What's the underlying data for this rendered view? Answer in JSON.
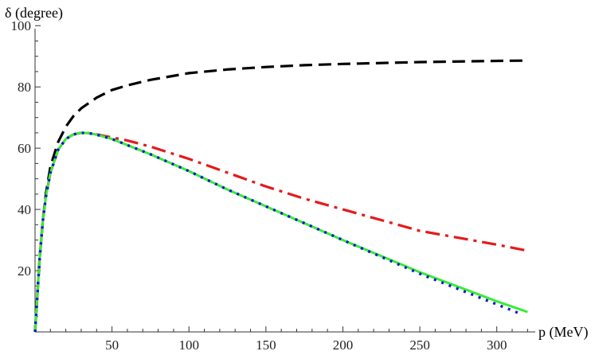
{
  "chart_data": {
    "type": "line",
    "title": "",
    "xlabel": "p (MeV)",
    "ylabel": "δ (degree)",
    "xlim": [
      0,
      325
    ],
    "ylim": [
      0,
      105
    ],
    "xticks": [
      50,
      100,
      150,
      200,
      250,
      300
    ],
    "yticks": [
      20,
      40,
      60,
      80,
      100
    ],
    "grid": false,
    "series": [
      {
        "color": "#000000",
        "dash": "dashed",
        "x": [
          0,
          1,
          2,
          3,
          5,
          7,
          10,
          15,
          20,
          25,
          30,
          40,
          50,
          60,
          75,
          100,
          125,
          150,
          175,
          200,
          250,
          300,
          320
        ],
        "y": [
          0,
          8,
          16,
          24,
          36,
          45,
          54,
          62,
          67,
          70.5,
          73,
          76.5,
          79,
          80.5,
          82.3,
          84.5,
          85.7,
          86.5,
          87.1,
          87.5,
          88.1,
          88.5,
          88.6
        ]
      },
      {
        "color": "#e41a1c",
        "dash": "dashdot",
        "x": [
          0,
          1,
          2,
          3,
          5,
          7,
          10,
          15,
          20,
          25,
          30,
          35,
          40,
          50,
          60,
          75,
          100,
          125,
          150,
          175,
          200,
          250,
          300,
          320
        ],
        "y": [
          0,
          8,
          16,
          24,
          36,
          44,
          52,
          59.5,
          63,
          64.5,
          65,
          64.9,
          64.5,
          63.5,
          62.5,
          60.5,
          56.5,
          52,
          47.5,
          43.5,
          40,
          33,
          28.5,
          26.5
        ]
      },
      {
        "color": "#33ee33",
        "dash": "solid",
        "x": [
          0,
          1,
          2,
          3,
          5,
          7,
          10,
          15,
          20,
          25,
          30,
          35,
          40,
          50,
          60,
          75,
          100,
          125,
          150,
          175,
          200,
          250,
          300,
          320
        ],
        "y": [
          0,
          8,
          16,
          24,
          36,
          44,
          52,
          59.5,
          63,
          64.5,
          65,
          64.9,
          64.4,
          63,
          61,
          58,
          52.5,
          46.5,
          41,
          35.5,
          30,
          19.5,
          10,
          6.5
        ]
      },
      {
        "color": "#1515cc",
        "dash": "dotted",
        "x": [
          0,
          1,
          2,
          3,
          5,
          7,
          10,
          15,
          20,
          25,
          30,
          35,
          40,
          50,
          60,
          75,
          100,
          125,
          150,
          175,
          200,
          250,
          300,
          315
        ],
        "y": [
          0,
          8,
          16,
          24,
          36,
          44,
          52,
          59.5,
          63,
          64.5,
          65,
          64.9,
          64.4,
          63,
          61,
          58,
          52.5,
          46.5,
          41,
          35.5,
          30,
          19,
          9,
          6
        ]
      }
    ]
  }
}
